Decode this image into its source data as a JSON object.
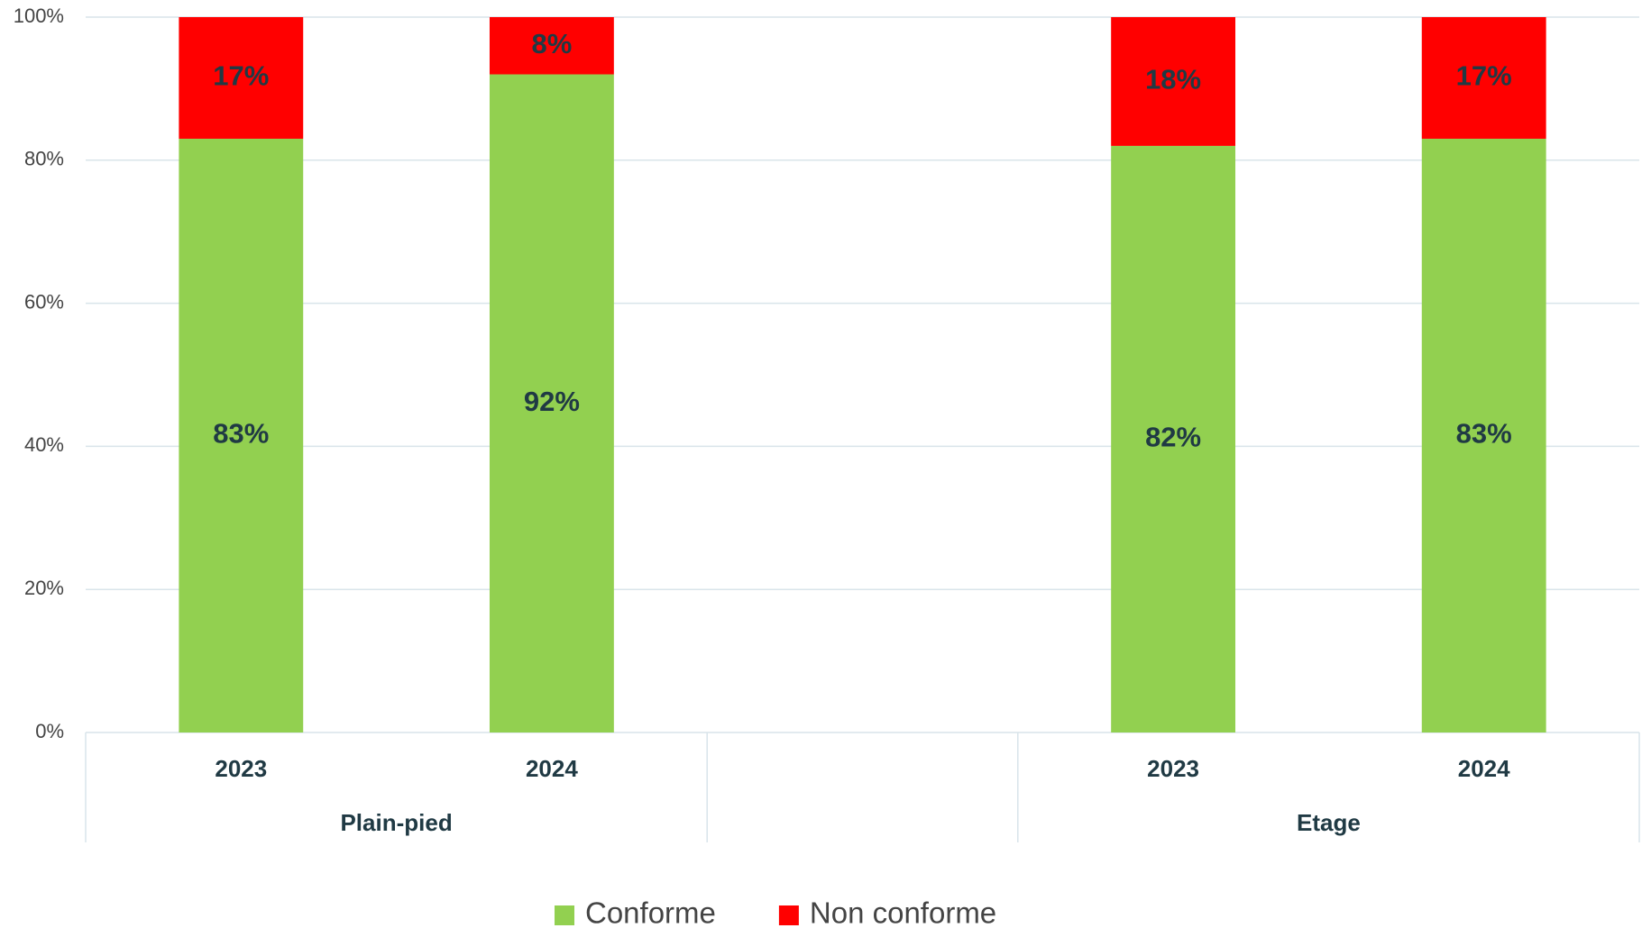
{
  "chart_data": {
    "type": "stacked_bar",
    "categories": [
      "2023",
      "2024",
      null,
      "2023",
      "2024"
    ],
    "groups": [
      {
        "name": "Plain-pied",
        "start": 0,
        "end": 1
      },
      {
        "name": "Etage",
        "start": 3,
        "end": 4
      }
    ],
    "series": [
      {
        "name": "Conforme",
        "color": "#92d050",
        "values": [
          83,
          92,
          null,
          82,
          83
        ],
        "value_labels": [
          "83%",
          "92%",
          null,
          "82%",
          "83%"
        ]
      },
      {
        "name": "Non conforme",
        "color": "#ff0000",
        "values": [
          17,
          8,
          null,
          18,
          17
        ],
        "value_labels": [
          "17%",
          "8%",
          null,
          "18%",
          "17%"
        ]
      }
    ],
    "ylim": [
      0,
      100
    ],
    "yticks": [
      {
        "value": 0,
        "label": "0%"
      },
      {
        "value": 20,
        "label": "20%"
      },
      {
        "value": 40,
        "label": "40%"
      },
      {
        "value": 60,
        "label": "60%"
      },
      {
        "value": 80,
        "label": "80%"
      },
      {
        "value": 100,
        "label": "100%"
      }
    ],
    "grid": true,
    "legend": "bottom"
  }
}
